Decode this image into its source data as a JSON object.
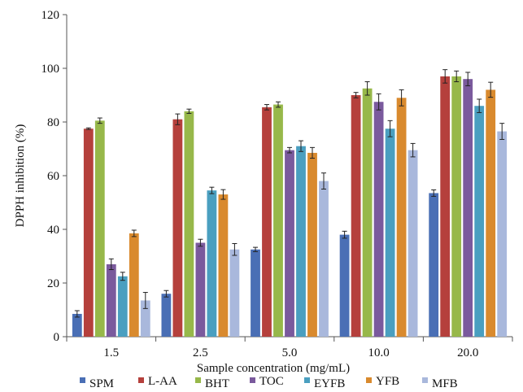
{
  "chart_data": {
    "type": "bar",
    "title": "",
    "xlabel": "Sample concentration (mg/mL)",
    "ylabel": "DPPH inhibition (%)",
    "ylim": [
      0,
      120
    ],
    "yticks": [
      "0",
      "20",
      "40",
      "60",
      "80",
      "100",
      "120"
    ],
    "categories": [
      "1.5",
      "2.5",
      "5.0",
      "10.0",
      "20.0"
    ],
    "grid": false,
    "error_bars": true,
    "legend_position": "bottom",
    "series": [
      {
        "name": "SPM",
        "color": "#4a6fb5",
        "values": [
          8.5,
          16,
          32.5,
          38,
          53.5
        ],
        "errors": [
          1.2,
          1.2,
          0.8,
          1.3,
          1.2
        ]
      },
      {
        "name": "L-AA",
        "color": "#b5403c",
        "values": [
          77.5,
          81,
          85.5,
          90,
          97
        ],
        "errors": [
          0.3,
          2,
          1,
          1,
          2.5
        ]
      },
      {
        "name": "BHT",
        "color": "#97b84a",
        "values": [
          80.5,
          84,
          86.5,
          92.5,
          97
        ],
        "errors": [
          1,
          0.8,
          1,
          2.5,
          2
        ]
      },
      {
        "name": "TOC",
        "color": "#7a5a9d",
        "values": [
          27,
          35,
          69.5,
          87.5,
          96
        ],
        "errors": [
          2,
          1.3,
          1,
          3,
          2.5
        ]
      },
      {
        "name": "EYFB",
        "color": "#4a9fc0",
        "values": [
          22.5,
          54.5,
          71,
          77.5,
          86
        ],
        "errors": [
          1.5,
          1.2,
          2,
          3,
          2.5
        ]
      },
      {
        "name": "YFB",
        "color": "#d98a2e",
        "values": [
          38.5,
          53,
          68.5,
          89,
          92
        ],
        "errors": [
          1.2,
          1.8,
          2,
          3,
          2.8
        ]
      },
      {
        "name": "MFB",
        "color": "#a9b8dc",
        "values": [
          13.5,
          32.5,
          58,
          69.5,
          76.5
        ],
        "errors": [
          3,
          2.2,
          3,
          2.5,
          3
        ]
      }
    ]
  }
}
